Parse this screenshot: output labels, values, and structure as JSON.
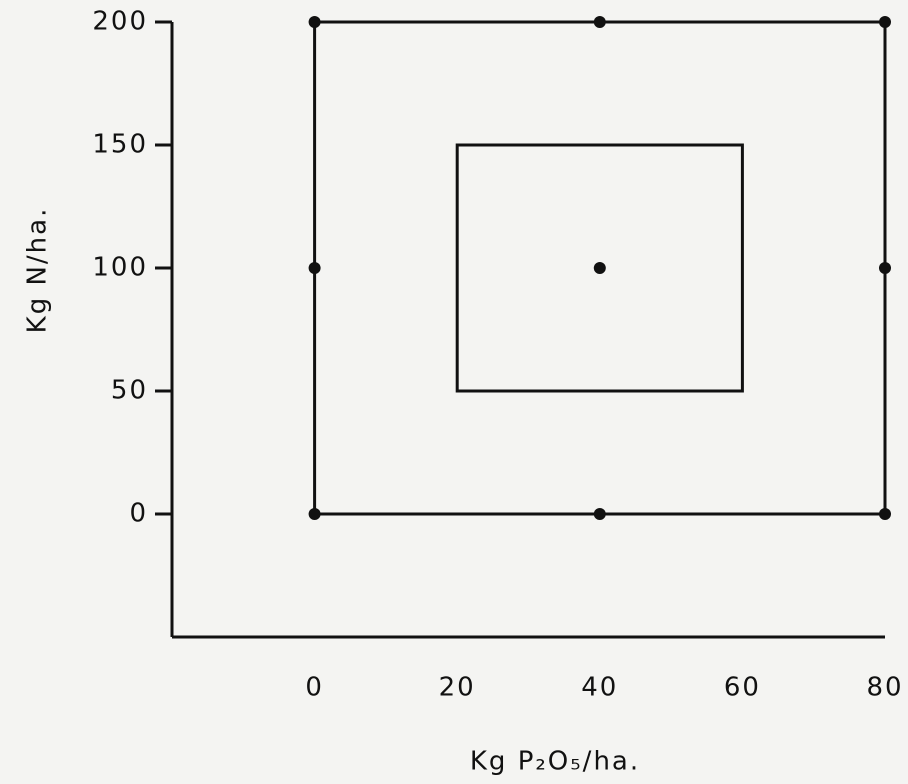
{
  "chart_data": {
    "type": "scatter",
    "x_label": "Kg P₂O₅/ha.",
    "y_label": "Kg N/ha.",
    "x": [
      0,
      40,
      80,
      0,
      40,
      80,
      0,
      40,
      80
    ],
    "values": [
      200,
      200,
      200,
      100,
      100,
      100,
      0,
      0,
      0
    ],
    "color": "#111111",
    "rectangles": [
      {
        "x": [
          0,
          80
        ],
        "y": [
          0,
          200
        ]
      },
      {
        "x": [
          20,
          60
        ],
        "y": [
          50,
          150
        ]
      }
    ],
    "xlim": [
      -20,
      80
    ],
    "ylim": [
      -50,
      200
    ],
    "xticks": [
      0,
      20,
      40,
      60,
      80
    ],
    "yticks": [
      0,
      50,
      100,
      150,
      200
    ]
  }
}
